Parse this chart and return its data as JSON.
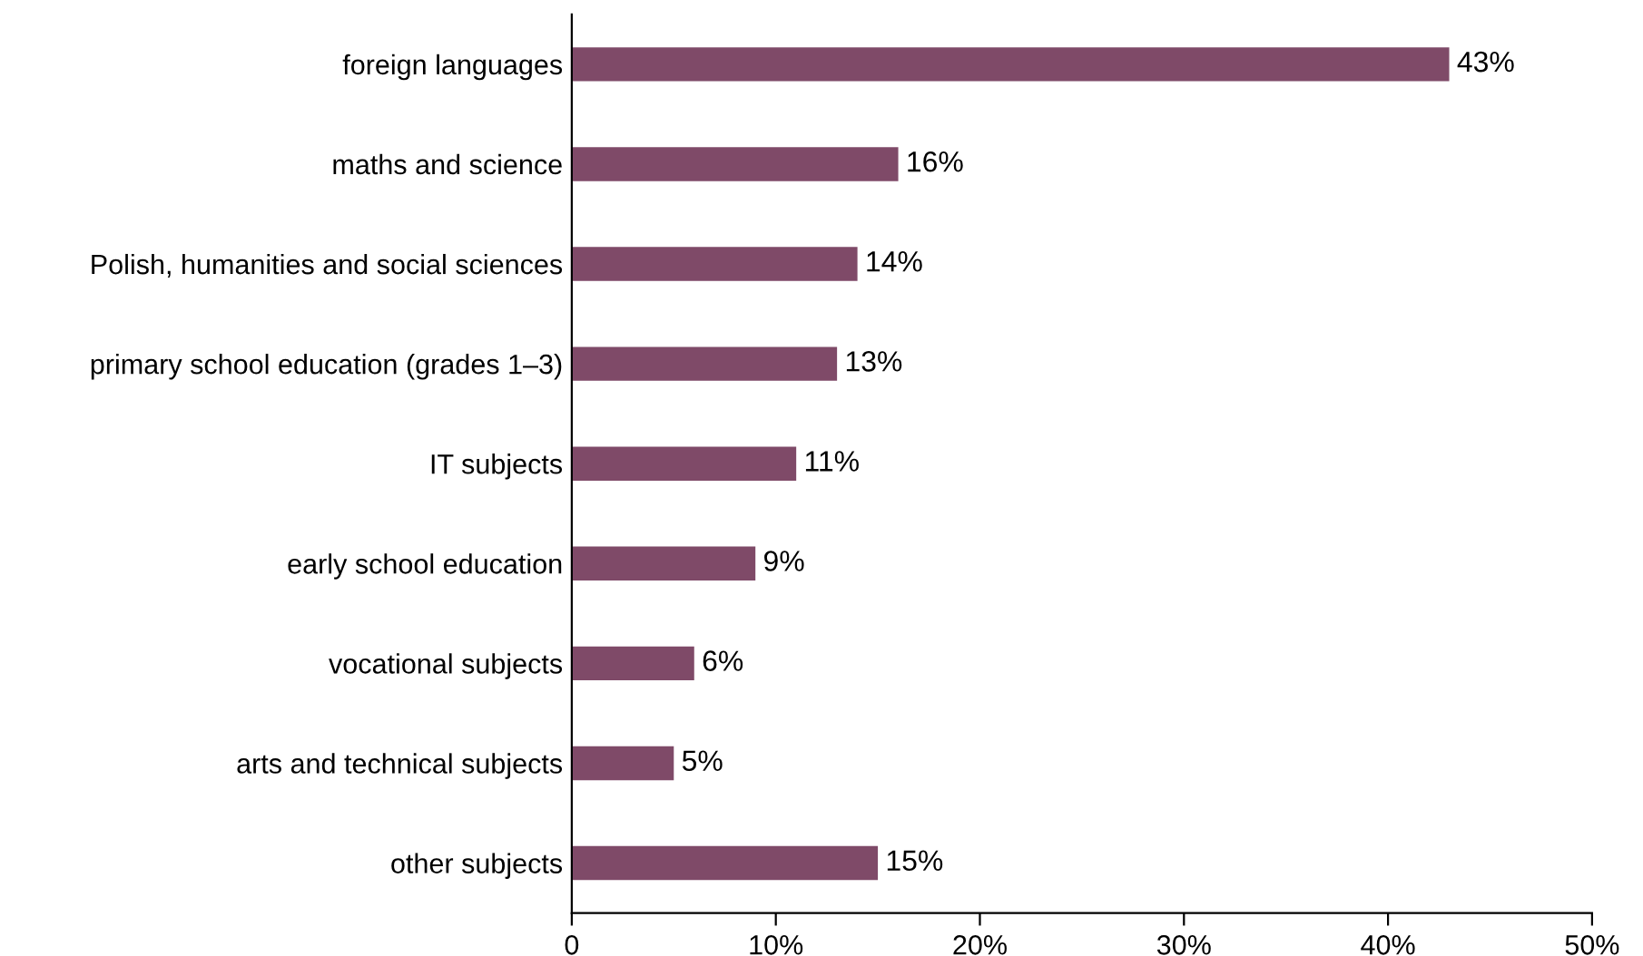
{
  "chart_data": {
    "type": "bar",
    "orientation": "horizontal",
    "categories": [
      "foreign languages",
      "maths and science",
      "Polish, humanities and social sciences",
      "primary school education (grades 1–3)",
      "IT subjects",
      "early school education",
      "vocational subjects",
      "arts and technical subjects",
      "other subjects"
    ],
    "values": [
      43,
      16,
      14,
      13,
      11,
      9,
      6,
      5,
      15
    ],
    "value_labels": [
      "43%",
      "16%",
      "14%",
      "13%",
      "11%",
      "9%",
      "6%",
      "5%",
      "15%"
    ],
    "color": "#7f4a68",
    "xlim": [
      0,
      50
    ],
    "xticks": [
      0,
      {
        "value": 10,
        "label": "10%"
      },
      {
        "value": 20,
        "label": "20%"
      },
      {
        "value": 30,
        "label": "30%"
      },
      {
        "value": 40,
        "label": "40%"
      },
      {
        "value": 50,
        "label": "50%"
      }
    ],
    "grid": false,
    "legend": false
  }
}
